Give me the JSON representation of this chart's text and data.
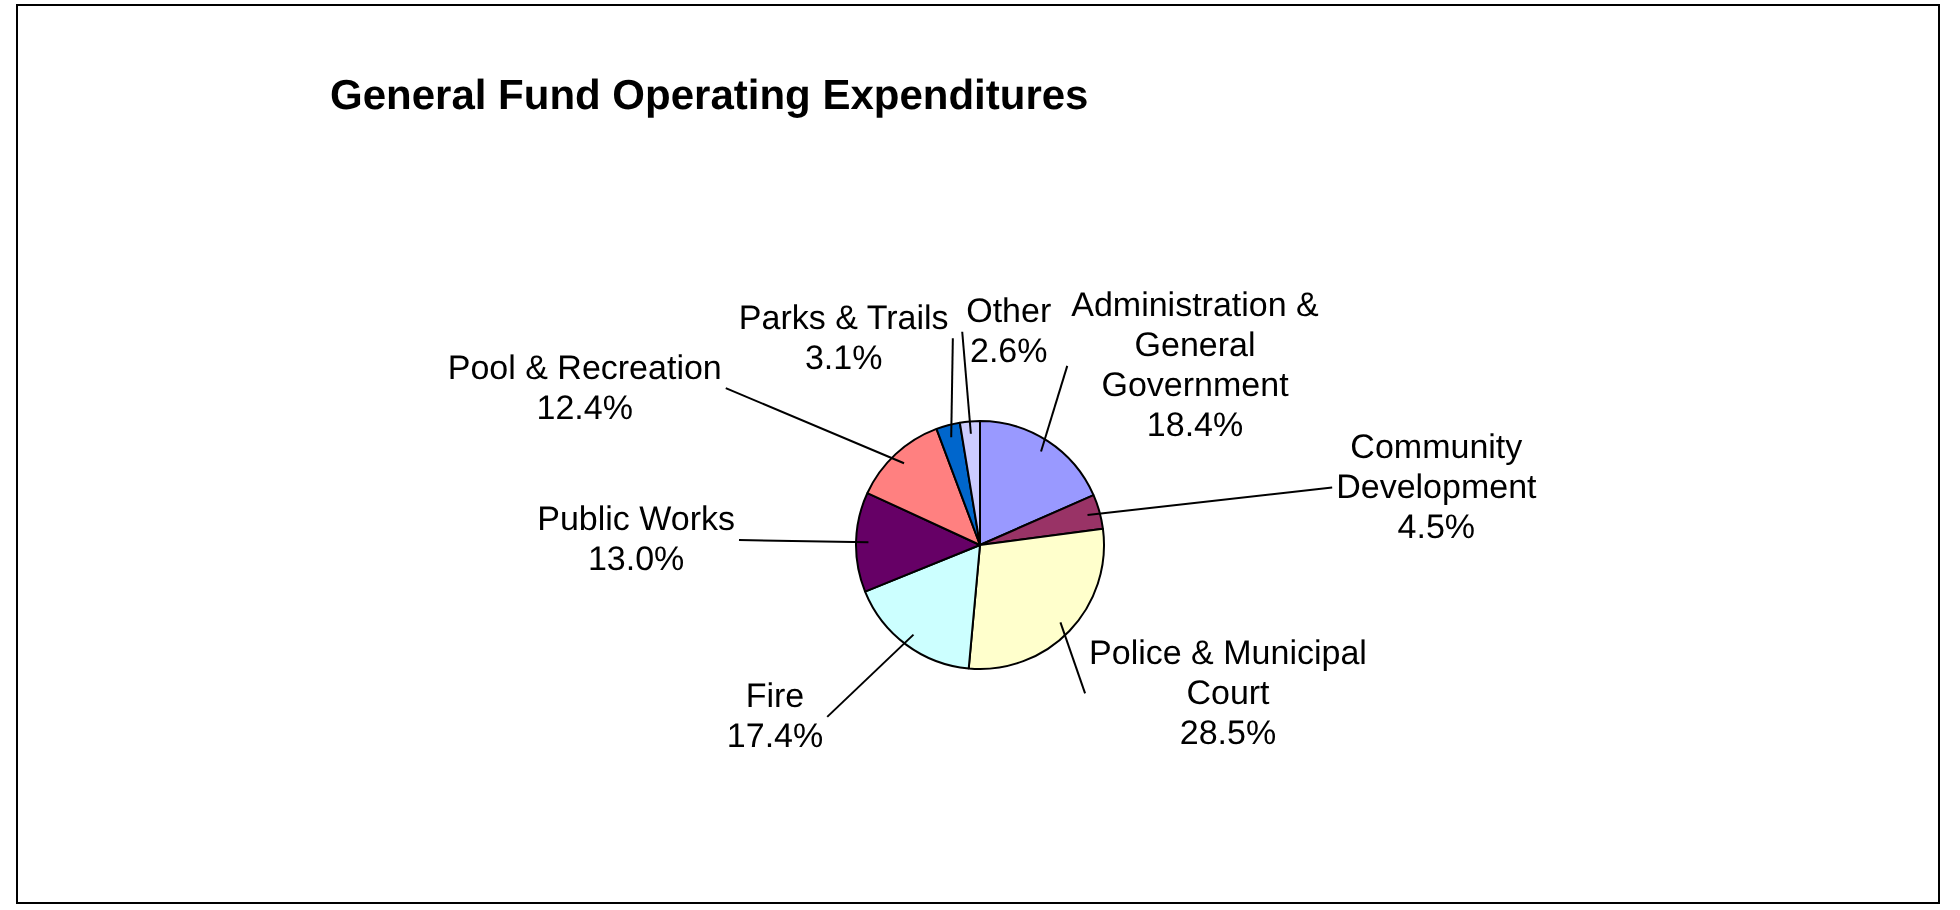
{
  "chart_data": {
    "type": "pie",
    "title": "General Fund Operating Expenditures",
    "categories": [
      "Administration & General Government",
      "Community Development",
      "Police & Municipal Court",
      "Fire",
      "Public Works",
      "Pool & Recreation",
      "Parks & Trails",
      "Other"
    ],
    "values": [
      18.4,
      4.5,
      28.5,
      17.4,
      13.0,
      12.4,
      3.1,
      2.6
    ],
    "value_labels": [
      "18.4%",
      "4.5%",
      "28.5%",
      "17.4%",
      "13.0%",
      "12.4%",
      "3.1%",
      "2.6%"
    ],
    "colors": [
      "#9999ff",
      "#993366",
      "#ffffcc",
      "#ccffff",
      "#660066",
      "#ff8080",
      "#0066cc",
      "#ccccff"
    ],
    "legend": false
  }
}
